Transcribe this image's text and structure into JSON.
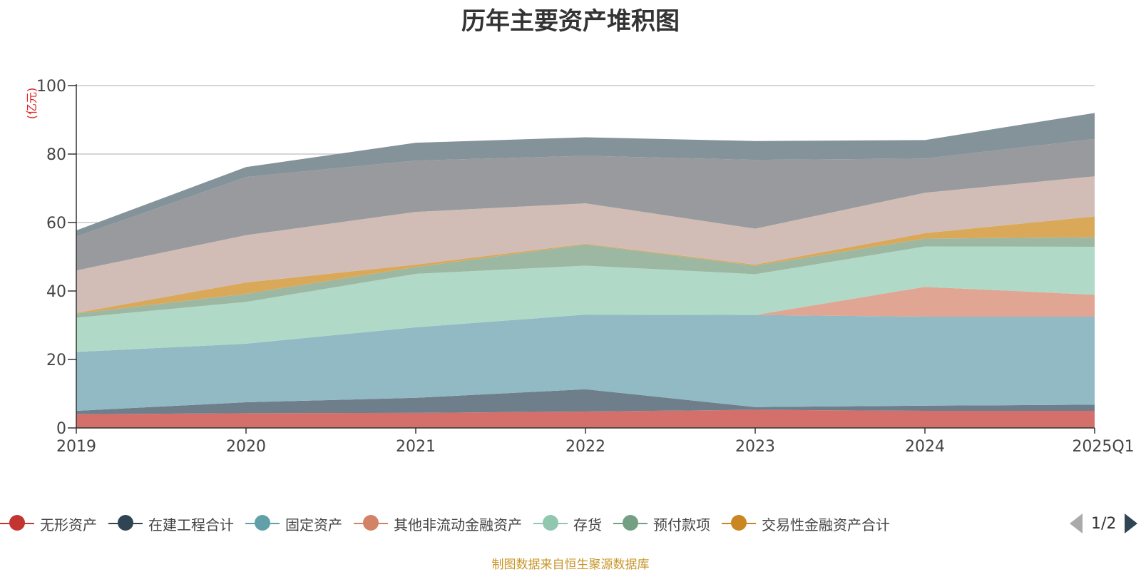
{
  "chart_data": {
    "type": "area",
    "stacked": true,
    "title": "历年主要资产堆积图",
    "ylabel": "(亿元)",
    "ylim": [
      0,
      100
    ],
    "yticks": [
      0,
      20,
      40,
      60,
      80,
      100
    ],
    "grid": true,
    "legend_position": "bottom",
    "categories": [
      "2019",
      "2020",
      "2021",
      "2022",
      "2023",
      "2024",
      "2025Q1"
    ],
    "series": [
      {
        "name": "无形资产",
        "color": "#d4706b",
        "values": [
          4.0,
          4.3,
          4.4,
          4.8,
          5.3,
          5.0,
          5.0
        ]
      },
      {
        "name": "在建工程合计",
        "color": "#6e7f8b",
        "values": [
          1.0,
          3.2,
          4.4,
          6.5,
          0.8,
          1.5,
          1.8
        ]
      },
      {
        "name": "固定资产",
        "color": "#91bac4",
        "values": [
          17.2,
          17.1,
          20.6,
          21.8,
          26.9,
          26.0,
          25.7
        ]
      },
      {
        "name": "其他非流动金融资产",
        "color": "#e0a593",
        "values": [
          0,
          0,
          0,
          0,
          0,
          8.7,
          6.4
        ]
      },
      {
        "name": "存货",
        "color": "#b0dac7",
        "values": [
          10.0,
          12.2,
          15.6,
          14.3,
          11.9,
          11.8,
          14.0
        ]
      },
      {
        "name": "预付款项",
        "color": "#9cb8a3",
        "values": [
          1.2,
          2.4,
          2.0,
          6.2,
          2.5,
          2.3,
          2.8
        ]
      },
      {
        "name": "交易性金融资产合计",
        "color": "#daa859",
        "values": [
          0.2,
          3.3,
          0.7,
          0.2,
          0.3,
          1.6,
          6.1
        ]
      },
      {
        "color": "#d2bdb6",
        "values": [
          12.4,
          13.8,
          15.4,
          11.8,
          10.5,
          11.8,
          11.7
        ]
      },
      {
        "color": "#999a9e",
        "values": [
          9.9,
          17.0,
          15.0,
          13.9,
          20.1,
          10.0,
          10.9
        ]
      },
      {
        "color": "#84929a",
        "values": [
          1.8,
          2.9,
          5.2,
          5.4,
          5.5,
          5.4,
          7.6
        ]
      }
    ]
  },
  "legend": {
    "items": [
      {
        "label": "无形资产",
        "color": "#c23531"
      },
      {
        "label": "在建工程合计",
        "color": "#2f4554"
      },
      {
        "label": "固定资产",
        "color": "#61a0a8"
      },
      {
        "label": "其他非流动金融资产",
        "color": "#d48265"
      },
      {
        "label": "存货",
        "color": "#91c7ae"
      },
      {
        "label": "预付款项",
        "color": "#749f83"
      },
      {
        "label": "交易性金融资产合计",
        "color": "#ca8622"
      }
    ],
    "page_text": "1/2"
  },
  "source_note": "制图数据来自恒生聚源数据库"
}
